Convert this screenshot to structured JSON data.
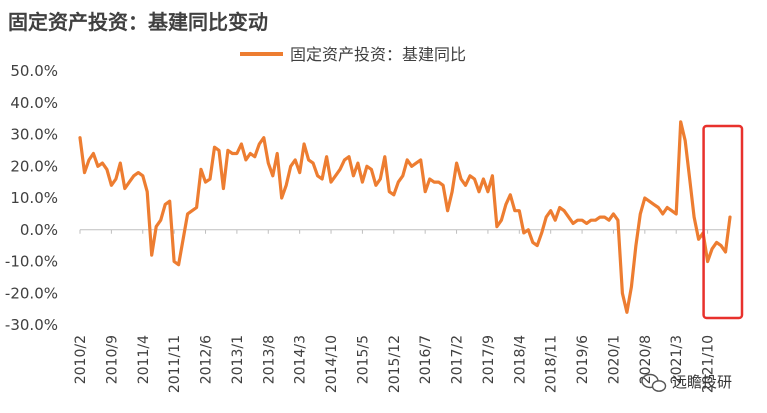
{
  "title": "固定资产投资：基建同比变动",
  "watermark": "远瞻投研",
  "colors": {
    "series": "#ED7D31",
    "highlight": "#E8312C",
    "axis": "#BFBFBF",
    "text": "#404040"
  },
  "chart_data": {
    "type": "line",
    "title": "固定资产投资：基建同比变动",
    "xlabel": "",
    "ylabel": "",
    "ylim": [
      -30,
      50
    ],
    "yticks": [
      "50.0%",
      "40.0%",
      "30.0%",
      "20.0%",
      "10.0%",
      "0.0%",
      "-10.0%",
      "-20.0%",
      "-30.0%"
    ],
    "yvalues": [
      50,
      40,
      30,
      20,
      10,
      0,
      -10,
      -20,
      -30
    ],
    "xticks": [
      "2010/2",
      "2010/9",
      "2011/4",
      "2011/11",
      "2012/6",
      "2013/1",
      "2013/8",
      "2014/3",
      "2014/10",
      "2015/5",
      "2015/12",
      "2016/7",
      "2017/2",
      "2017/9",
      "2018/4",
      "2018/11",
      "2019/6",
      "2020/1",
      "2020/8",
      "2021/3",
      "2021/10"
    ],
    "legend": {
      "position": "top-center"
    },
    "grid": false,
    "highlight_box": {
      "from": "2021/10",
      "to": "2022/3"
    },
    "series": [
      {
        "name": "固定资产投资：基建同比",
        "points": [
          [
            "2010/2",
            29
          ],
          [
            "2010/3",
            18
          ],
          [
            "2010/4",
            22
          ],
          [
            "2010/5",
            24
          ],
          [
            "2010/6",
            20
          ],
          [
            "2010/7",
            21
          ],
          [
            "2010/8",
            19
          ],
          [
            "2010/9",
            14
          ],
          [
            "2010/10",
            16
          ],
          [
            "2010/11",
            21
          ],
          [
            "2010/12",
            13
          ],
          [
            "2011/1",
            15
          ],
          [
            "2011/2",
            17
          ],
          [
            "2011/3",
            18
          ],
          [
            "2011/4",
            17
          ],
          [
            "2011/5",
            12
          ],
          [
            "2011/6",
            -8
          ],
          [
            "2011/7",
            1
          ],
          [
            "2011/8",
            3
          ],
          [
            "2011/9",
            8
          ],
          [
            "2011/10",
            9
          ],
          [
            "2011/11",
            -10
          ],
          [
            "2011/12",
            -11
          ],
          [
            "2012/1",
            -3
          ],
          [
            "2012/2",
            5
          ],
          [
            "2012/3",
            6
          ],
          [
            "2012/4",
            7
          ],
          [
            "2012/5",
            19
          ],
          [
            "2012/6",
            15
          ],
          [
            "2012/7",
            16
          ],
          [
            "2012/8",
            26
          ],
          [
            "2012/9",
            25
          ],
          [
            "2012/10",
            13
          ],
          [
            "2012/11",
            25
          ],
          [
            "2012/12",
            24
          ],
          [
            "2013/1",
            24
          ],
          [
            "2013/2",
            27
          ],
          [
            "2013/3",
            22
          ],
          [
            "2013/4",
            24
          ],
          [
            "2013/5",
            23
          ],
          [
            "2013/6",
            27
          ],
          [
            "2013/7",
            29
          ],
          [
            "2013/8",
            21
          ],
          [
            "2013/9",
            17
          ],
          [
            "2013/10",
            24
          ],
          [
            "2013/11",
            10
          ],
          [
            "2013/12",
            14
          ],
          [
            "2014/1",
            20
          ],
          [
            "2014/2",
            22
          ],
          [
            "2014/3",
            18
          ],
          [
            "2014/4",
            27
          ],
          [
            "2014/5",
            22
          ],
          [
            "2014/6",
            21
          ],
          [
            "2014/7",
            17
          ],
          [
            "2014/8",
            16
          ],
          [
            "2014/9",
            23
          ],
          [
            "2014/10",
            15
          ],
          [
            "2014/11",
            17
          ],
          [
            "2014/12",
            19
          ],
          [
            "2015/1",
            22
          ],
          [
            "2015/2",
            23
          ],
          [
            "2015/3",
            17
          ],
          [
            "2015/4",
            21
          ],
          [
            "2015/5",
            15
          ],
          [
            "2015/6",
            20
          ],
          [
            "2015/7",
            19
          ],
          [
            "2015/8",
            14
          ],
          [
            "2015/9",
            16
          ],
          [
            "2015/10",
            23
          ],
          [
            "2015/11",
            12
          ],
          [
            "2015/12",
            11
          ],
          [
            "2016/1",
            15
          ],
          [
            "2016/2",
            17
          ],
          [
            "2016/3",
            22
          ],
          [
            "2016/4",
            20
          ],
          [
            "2016/5",
            21
          ],
          [
            "2016/6",
            22
          ],
          [
            "2016/7",
            12
          ],
          [
            "2016/8",
            16
          ],
          [
            "2016/9",
            15
          ],
          [
            "2016/10",
            15
          ],
          [
            "2016/11",
            14
          ],
          [
            "2016/12",
            6
          ],
          [
            "2017/1",
            12
          ],
          [
            "2017/2",
            21
          ],
          [
            "2017/3",
            16
          ],
          [
            "2017/4",
            14
          ],
          [
            "2017/5",
            17
          ],
          [
            "2017/6",
            16
          ],
          [
            "2017/7",
            12
          ],
          [
            "2017/8",
            16
          ],
          [
            "2017/9",
            12
          ],
          [
            "2017/10",
            17
          ],
          [
            "2017/11",
            1
          ],
          [
            "2017/12",
            3
          ],
          [
            "2018/1",
            8
          ],
          [
            "2018/2",
            11
          ],
          [
            "2018/3",
            6
          ],
          [
            "2018/4",
            6
          ],
          [
            "2018/5",
            -1
          ],
          [
            "2018/6",
            0
          ],
          [
            "2018/7",
            -4
          ],
          [
            "2018/8",
            -5
          ],
          [
            "2018/9",
            -1
          ],
          [
            "2018/10",
            4
          ],
          [
            "2018/11",
            6
          ],
          [
            "2018/12",
            3
          ],
          [
            "2019/1",
            7
          ],
          [
            "2019/2",
            6
          ],
          [
            "2019/3",
            4
          ],
          [
            "2019/4",
            2
          ],
          [
            "2019/5",
            3
          ],
          [
            "2019/6",
            3
          ],
          [
            "2019/7",
            2
          ],
          [
            "2019/8",
            3
          ],
          [
            "2019/9",
            3
          ],
          [
            "2019/10",
            4
          ],
          [
            "2019/11",
            4
          ],
          [
            "2019/12",
            3
          ],
          [
            "2020/1",
            5
          ],
          [
            "2020/2",
            3
          ],
          [
            "2020/3",
            -20
          ],
          [
            "2020/4",
            -26
          ],
          [
            "2020/5",
            -18
          ],
          [
            "2020/6",
            -5
          ],
          [
            "2020/7",
            5
          ],
          [
            "2020/8",
            10
          ],
          [
            "2020/9",
            9
          ],
          [
            "2020/10",
            8
          ],
          [
            "2020/11",
            7
          ],
          [
            "2020/12",
            5
          ],
          [
            "2021/1",
            7
          ],
          [
            "2021/2",
            6
          ],
          [
            "2021/3",
            5
          ],
          [
            "2021/4",
            34
          ],
          [
            "2021/5",
            28
          ],
          [
            "2021/6",
            16
          ],
          [
            "2021/7",
            4
          ],
          [
            "2021/8",
            -3
          ],
          [
            "2021/9",
            -1
          ],
          [
            "2021/10",
            -10
          ],
          [
            "2021/11",
            -6
          ],
          [
            "2021/12",
            -4
          ],
          [
            "2022/1",
            -5
          ],
          [
            "2022/2",
            -7
          ],
          [
            "2022/3",
            4
          ]
        ]
      }
    ]
  }
}
